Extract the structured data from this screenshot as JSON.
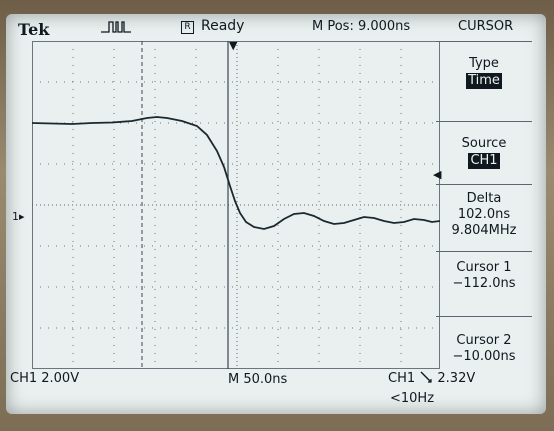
{
  "header": {
    "brand": "Tek",
    "trigger_icon": "pulse-waveform-icon",
    "run_indicator": "R",
    "run_status": "Ready",
    "mpos": "M Pos: 9.000ns"
  },
  "menu": {
    "title": "CURSOR",
    "items": [
      {
        "label": "Type",
        "value": "Time",
        "highlighted": true
      },
      {
        "label": "Source",
        "value": "CH1",
        "highlighted": true
      },
      {
        "label": "Delta",
        "lines": [
          "102.0ns",
          "9.804MHz"
        ]
      },
      {
        "label": "Cursor 1",
        "value": "−112.0ns"
      },
      {
        "label": "Cursor 2",
        "value": "−10.00ns"
      }
    ]
  },
  "markers": {
    "trigger_position": "▼",
    "trigger_level": "◀",
    "ch1_ground": "1▸"
  },
  "status_bar": {
    "ch1_scale": "CH1  2.00V",
    "timebase": "M 50.0ns",
    "trigger_channel": "CH1",
    "trigger_slope_icon": "falling-edge-icon",
    "trigger_level": "2.32V",
    "frequency": "<10Hz"
  },
  "colors": {
    "screen": "#e9f0ef",
    "ink": "#101820"
  }
}
